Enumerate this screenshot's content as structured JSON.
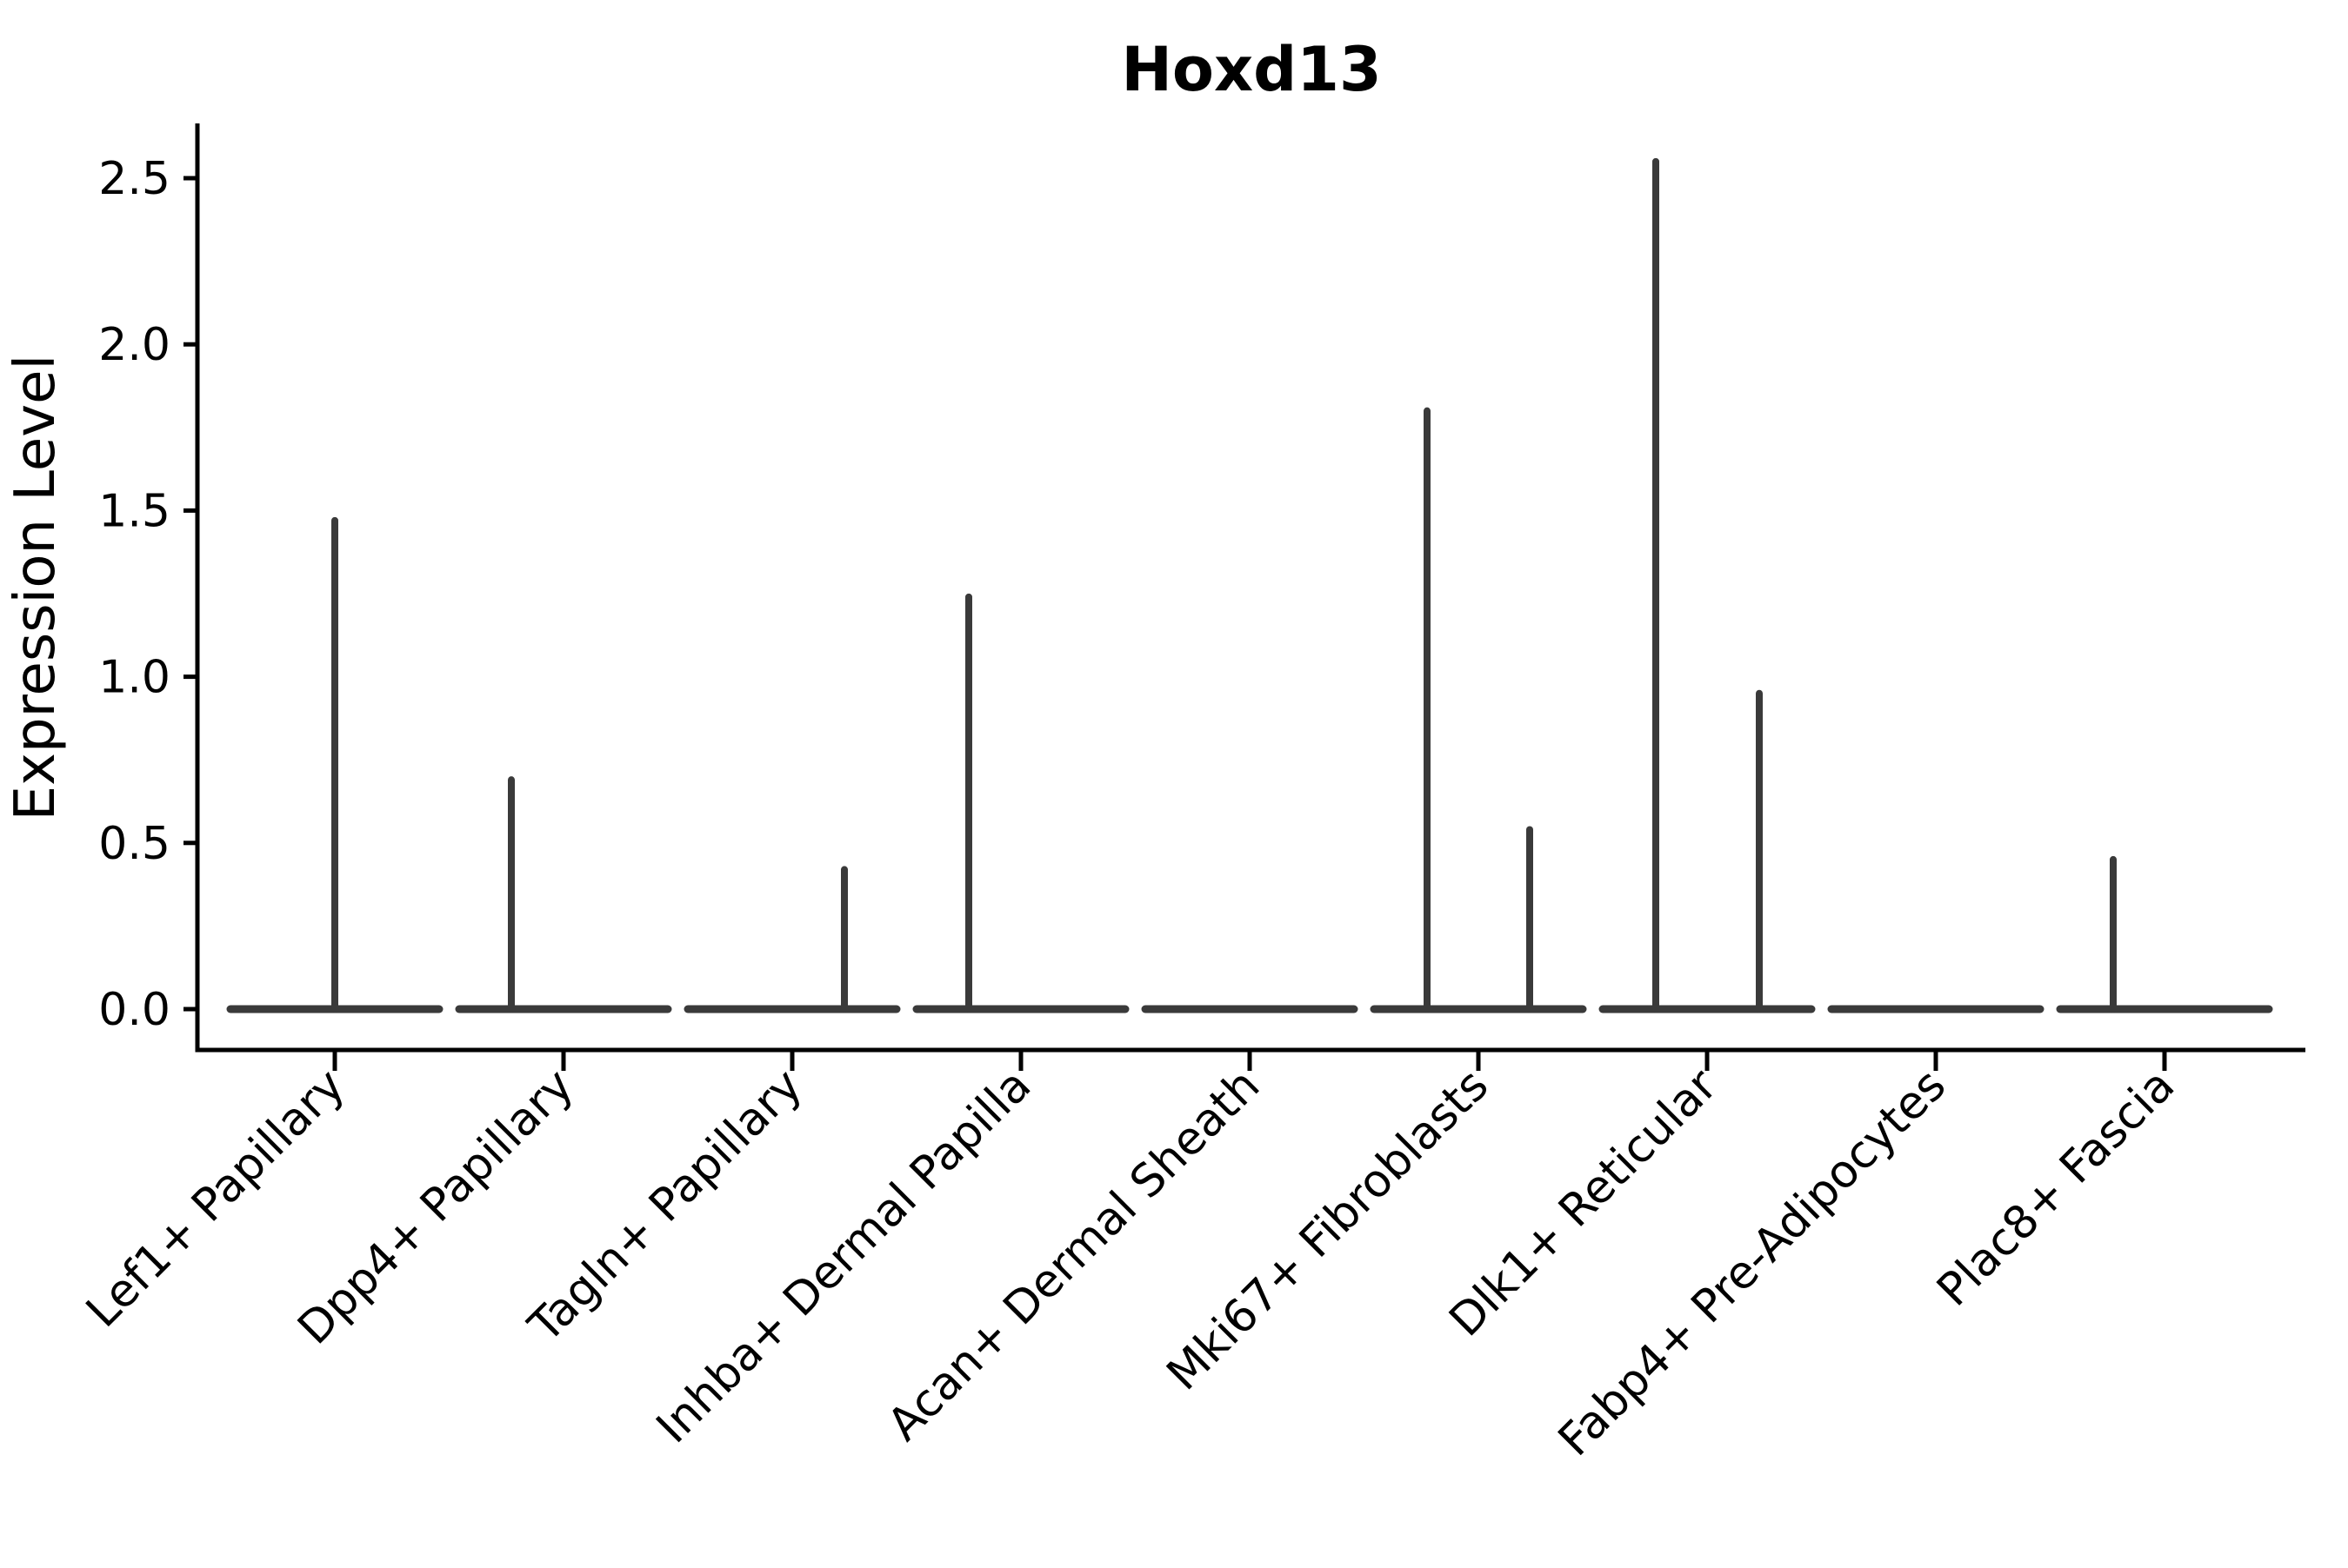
{
  "chart_data": {
    "type": "violin",
    "title": "Hoxd13",
    "xlabel": "",
    "ylabel": "Expression Level",
    "ylim": [
      0,
      2.65
    ],
    "yticks": [
      0.0,
      0.5,
      1.0,
      1.5,
      2.0,
      2.5
    ],
    "grid": false,
    "legend": "none",
    "categories": [
      "Lef1+ Papillary",
      "Dpp4+ Papillary",
      "Tagln+ Papillary",
      "Inhba+ Dermal Papilla",
      "Acan+ Dermal Sheath",
      "Mki67+ Fibroblasts",
      "Dlk1+ Reticular",
      "Fabp4+ Pre-Adipocytes",
      "Plac8+ Fascia"
    ],
    "violins": [
      {
        "category": "Lef1+ Papillary",
        "base_value": 0,
        "spikes": [
          {
            "offset": 0,
            "peak": 1.47
          }
        ]
      },
      {
        "category": "Dpp4+ Papillary",
        "base_value": 0,
        "spikes": [
          {
            "offset": -60,
            "peak": 0.69
          }
        ]
      },
      {
        "category": "Tagln+ Papillary",
        "base_value": 0,
        "spikes": [
          {
            "offset": 60,
            "peak": 0.42
          }
        ]
      },
      {
        "category": "Inhba+ Dermal Papilla",
        "base_value": 0,
        "spikes": [
          {
            "offset": -60,
            "peak": 1.24
          }
        ]
      },
      {
        "category": "Acan+ Dermal Sheath",
        "base_value": 0,
        "spikes": []
      },
      {
        "category": "Mki67+ Fibroblasts",
        "base_value": 0,
        "spikes": [
          {
            "offset": -59,
            "peak": 1.8
          },
          {
            "offset": 59,
            "peak": 0.54
          }
        ]
      },
      {
        "category": "Dlk1+ Reticular",
        "base_value": 0,
        "spikes": [
          {
            "offset": -59,
            "peak": 2.55
          },
          {
            "offset": 60,
            "peak": 0.95
          }
        ]
      },
      {
        "category": "Fabp4+ Pre-Adipocytes",
        "base_value": 0,
        "spikes": []
      },
      {
        "category": "Plac8+ Fascia",
        "base_value": 0,
        "spikes": [
          {
            "offset": -59,
            "peak": 0.45
          }
        ]
      }
    ],
    "colors": {
      "violin_stroke": "#3a3a3a",
      "axis": "#000000",
      "text": "#000000",
      "background": "#ffffff"
    }
  }
}
